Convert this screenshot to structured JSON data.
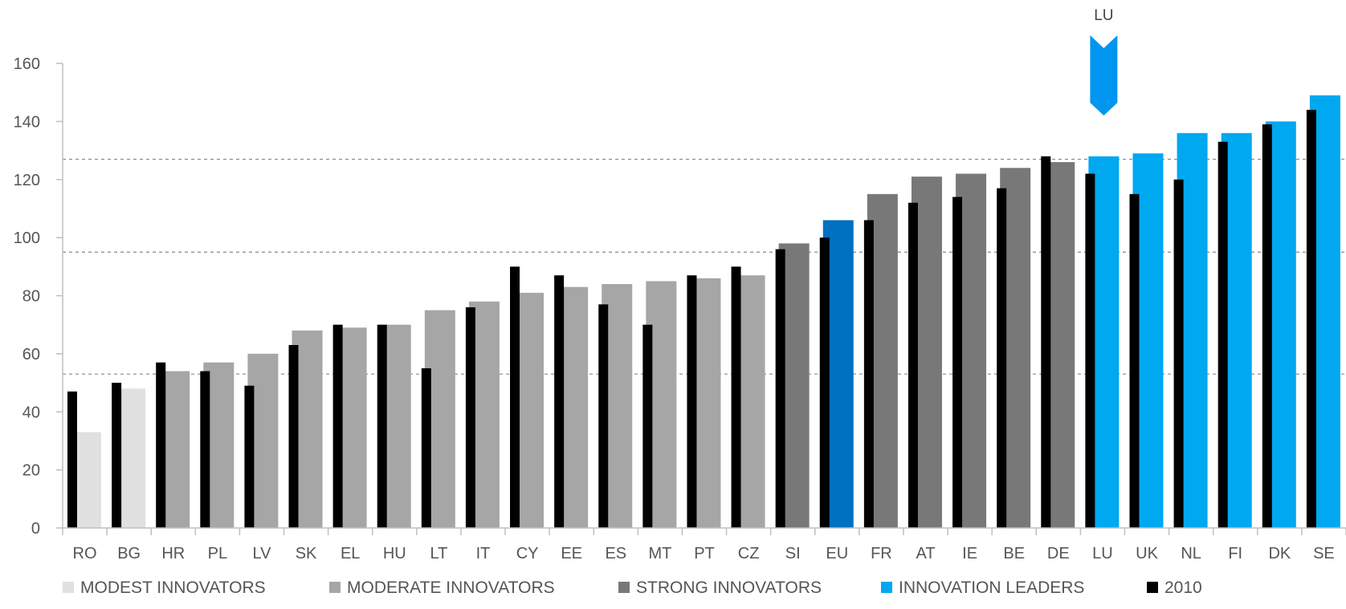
{
  "chart_data": {
    "type": "bar",
    "title": "",
    "xlabel": "",
    "ylabel": "",
    "ylim": [
      0,
      160
    ],
    "yticks": [
      0,
      20,
      40,
      60,
      80,
      100,
      120,
      140,
      160
    ],
    "grid": false,
    "legend_position": "bottom",
    "categories": [
      "RO",
      "BG",
      "HR",
      "PL",
      "LV",
      "SK",
      "EL",
      "HU",
      "LT",
      "IT",
      "CY",
      "EE",
      "ES",
      "MT",
      "PT",
      "CZ",
      "SI",
      "EU",
      "FR",
      "AT",
      "IE",
      "BE",
      "DE",
      "LU",
      "UK",
      "NL",
      "FI",
      "DK",
      "SE"
    ],
    "groups": [
      "modest",
      "modest",
      "moderate",
      "moderate",
      "moderate",
      "moderate",
      "moderate",
      "moderate",
      "moderate",
      "moderate",
      "moderate",
      "moderate",
      "moderate",
      "moderate",
      "moderate",
      "moderate",
      "strong",
      "eu",
      "strong",
      "strong",
      "strong",
      "strong",
      "strong",
      "leader",
      "leader",
      "leader",
      "leader",
      "leader",
      "leader"
    ],
    "series": [
      {
        "key": "current",
        "values": [
          33,
          48,
          54,
          57,
          60,
          68,
          69,
          70,
          75,
          78,
          81,
          83,
          84,
          85,
          86,
          87,
          98,
          106,
          115,
          121,
          122,
          124,
          126,
          128,
          129,
          136,
          136,
          140,
          149
        ]
      },
      {
        "key": "y2010",
        "name": "2010",
        "values": [
          47,
          50,
          57,
          54,
          49,
          63,
          70,
          70,
          55,
          76,
          90,
          87,
          77,
          70,
          87,
          90,
          96,
          100,
          106,
          112,
          114,
          117,
          128,
          122,
          115,
          120,
          133,
          139,
          144
        ]
      }
    ],
    "reference_lines": [
      127,
      95,
      53
    ],
    "legend": [
      {
        "label": "MODEST INNOVATORS",
        "group": "modest"
      },
      {
        "label": "MODERATE INNOVATORS",
        "group": "moderate"
      },
      {
        "label": "STRONG INNOVATORS",
        "group": "strong"
      },
      {
        "label": "INNOVATION LEADERS",
        "group": "leader"
      },
      {
        "label": "2010",
        "group": "y2010"
      }
    ],
    "colors": {
      "modest": "#e0e0e0",
      "moderate": "#a6a6a6",
      "strong": "#787878",
      "leader": "#00a8f0",
      "eu": "#0070c0",
      "y2010": "#000000",
      "arrow": "#0096f0",
      "axis": "#bfbfbf",
      "refline": "#888888"
    },
    "annotation": {
      "label": "LU",
      "target": "LU"
    }
  }
}
